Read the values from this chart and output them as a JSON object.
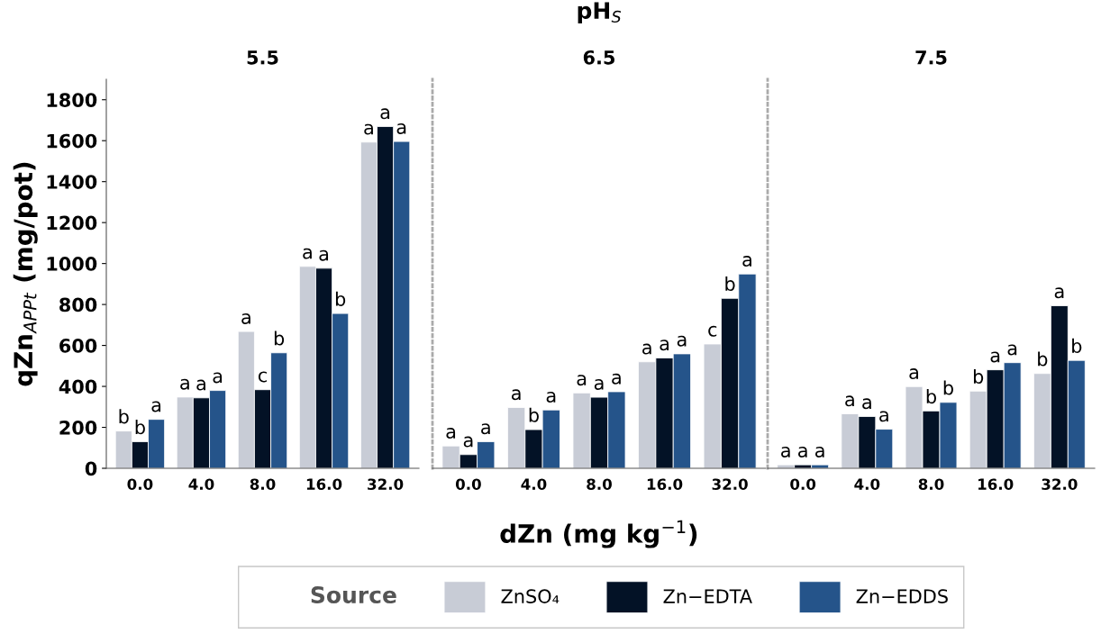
{
  "chart_data": [
    {
      "type": "bar",
      "title": "5.5",
      "ylabel": "qZn$_{APPt}$ (mg/pot)",
      "categories": [
        "0.0",
        "4.0",
        "8.0",
        "16.0",
        "32.0"
      ],
      "ylim": [
        0,
        1900
      ],
      "yticks": [
        0,
        200,
        400,
        600,
        800,
        1000,
        1200,
        1400,
        1600,
        1800
      ],
      "grid": false,
      "legend": "bottom",
      "legend_title": "Source",
      "series": [
        {
          "name": "ZnSO₄",
          "color": "#c8ccd6",
          "values": [
            182,
            348,
            668,
            986,
            1593
          ],
          "value_labels": [
            "b",
            "a",
            "a",
            "a",
            "a"
          ]
        },
        {
          "name": "Zn−EDTA",
          "color": "#031226",
          "values": [
            130,
            344,
            384,
            977,
            1669
          ],
          "value_labels": [
            "b",
            "a",
            "c",
            "a",
            "a"
          ]
        },
        {
          "name": "Zn−EDDS",
          "color": "#25548a",
          "values": [
            239,
            380,
            564,
            756,
            1596
          ],
          "value_labels": [
            "a",
            "a",
            "b",
            "b",
            "a"
          ]
        }
      ]
    },
    {
      "type": "bar",
      "title": "6.5",
      "xlabel": "dZn (mg kg$^{−1}$)",
      "annotations": [
        "pH$_{S}$"
      ],
      "categories": [
        "0.0",
        "4.0",
        "8.0",
        "16.0",
        "32.0"
      ],
      "ylim": [
        0,
        1900
      ],
      "tick_labels": "x",
      "grid": false,
      "series": [
        {
          "color": "#c8ccd6",
          "values": [
            109,
            297,
            368,
            520,
            607
          ],
          "value_labels": [
            "a",
            "a",
            "a",
            "a",
            "c"
          ]
        },
        {
          "color": "#031226",
          "values": [
            67,
            189,
            347,
            539,
            830
          ],
          "value_labels": [
            "a",
            "b",
            "a",
            "a",
            "b"
          ]
        },
        {
          "color": "#25548a",
          "values": [
            130,
            285,
            374,
            559,
            949
          ],
          "value_labels": [
            "a",
            "a",
            "a",
            "a",
            "a"
          ]
        }
      ]
    },
    {
      "type": "bar",
      "title": "7.5",
      "categories": [
        "0.0",
        "4.0",
        "8.0",
        "16.0",
        "32.0"
      ],
      "ylim": [
        0,
        1900
      ],
      "tick_labels": "x",
      "grid": false,
      "series": [
        {
          "color": "#c8ccd6",
          "values": [
            17,
            266,
            399,
            377,
            463
          ],
          "value_labels": [
            "a",
            "a",
            "a",
            "b",
            "b"
          ]
        },
        {
          "color": "#031226",
          "values": [
            17,
            253,
            280,
            481,
            794
          ],
          "value_labels": [
            "a",
            "a",
            "b",
            "a",
            "a"
          ]
        },
        {
          "color": "#25548a",
          "values": [
            17,
            191,
            322,
            516,
            527
          ],
          "value_labels": [
            "a",
            "a",
            "b",
            "a",
            "b"
          ]
        }
      ]
    }
  ]
}
